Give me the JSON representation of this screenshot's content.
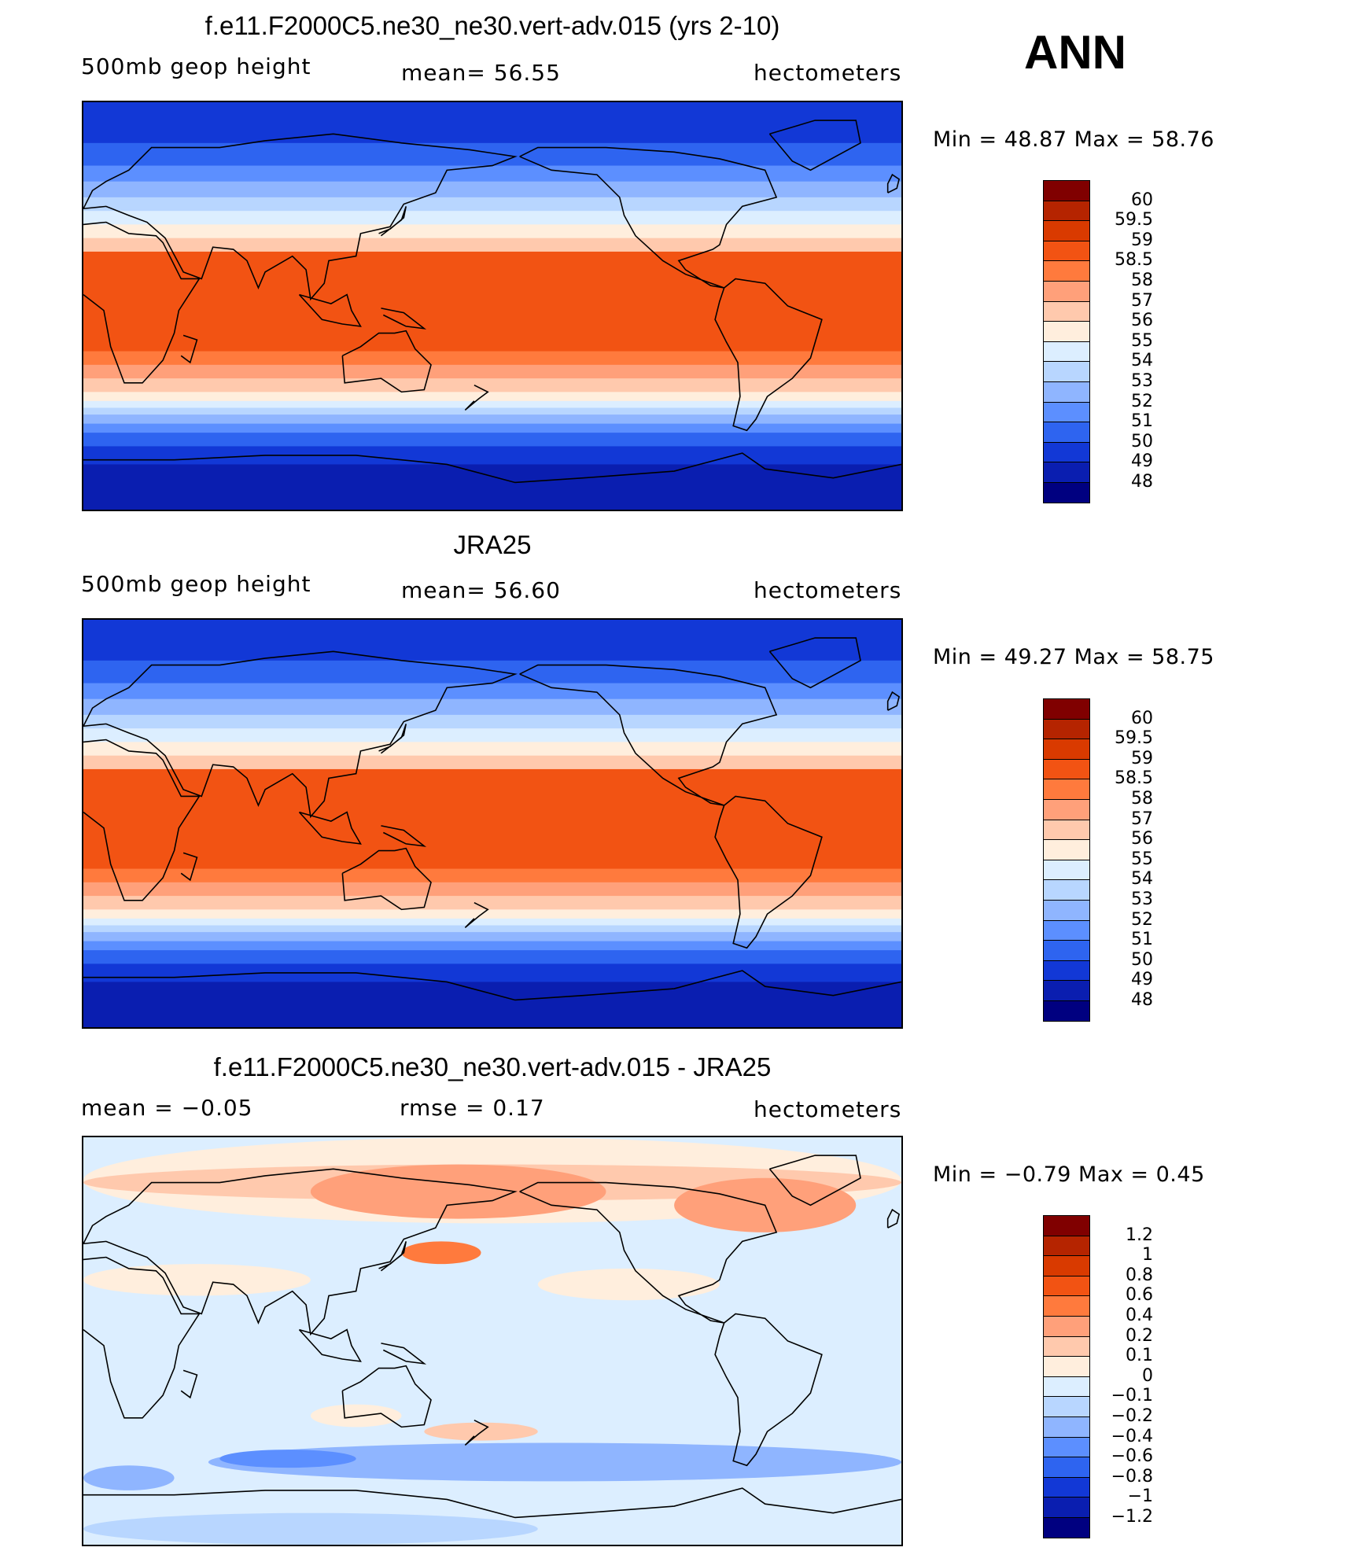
{
  "figure": {
    "season": "ANN"
  },
  "panels": [
    {
      "title": "f.e11.F2000C5.ne30_ne30.vert-adv.015 (yrs 2-10)",
      "left_label": "500mb  geop  height",
      "center_label": "mean=   56.55",
      "right_label": "hectometers",
      "min_max": "Min  =    48.87  Max  =    58.76",
      "colorbar": {
        "labels": [
          "60",
          "59.5",
          "59",
          "58.5",
          "58",
          "57",
          "56",
          "55",
          "54",
          "53",
          "52",
          "51",
          "50",
          "49",
          "48"
        ],
        "colors": [
          "#800000",
          "#b52400",
          "#d93a00",
          "#f25313",
          "#ff7a3d",
          "#ffa07a",
          "#ffc9ad",
          "#ffeedd",
          "#dceeff",
          "#b8d6ff",
          "#8fb5ff",
          "#5c8fff",
          "#2e64f0",
          "#1238d6",
          "#0a1eb0",
          "#000080"
        ]
      },
      "map_type": "absolute"
    },
    {
      "title": "JRA25",
      "left_label": "500mb  geop  height",
      "center_label": "mean=   56.60",
      "right_label": "hectometers",
      "min_max": "Min  =    49.27  Max  =    58.75",
      "colorbar": {
        "labels": [
          "60",
          "59.5",
          "59",
          "58.5",
          "58",
          "57",
          "56",
          "55",
          "54",
          "53",
          "52",
          "51",
          "50",
          "49",
          "48"
        ],
        "colors": [
          "#800000",
          "#b52400",
          "#d93a00",
          "#f25313",
          "#ff7a3d",
          "#ffa07a",
          "#ffc9ad",
          "#ffeedd",
          "#dceeff",
          "#b8d6ff",
          "#8fb5ff",
          "#5c8fff",
          "#2e64f0",
          "#1238d6",
          "#0a1eb0",
          "#000080"
        ]
      },
      "map_type": "absolute"
    },
    {
      "title": "f.e11.F2000C5.ne30_ne30.vert-adv.015 - JRA25",
      "left_label": "mean  =    −0.05",
      "center_label": "rmse  =     0.17",
      "right_label": "hectometers",
      "min_max": "Min  =   −0.79  Max  =     0.45",
      "colorbar": {
        "labels": [
          "1.2",
          "1",
          "0.8",
          "0.6",
          "0.4",
          "0.2",
          "0.1",
          "0",
          "−0.1",
          "−0.2",
          "−0.4",
          "−0.6",
          "−0.8",
          "−1",
          "−1.2"
        ],
        "colors": [
          "#800000",
          "#b52400",
          "#d93a00",
          "#f25313",
          "#ff7a3d",
          "#ffa07a",
          "#ffc9ad",
          "#ffeedd",
          "#dceeff",
          "#b8d6ff",
          "#8fb5ff",
          "#5c8fff",
          "#2e64f0",
          "#1238d6",
          "#0a1eb0",
          "#000080"
        ]
      },
      "map_type": "difference"
    }
  ]
}
